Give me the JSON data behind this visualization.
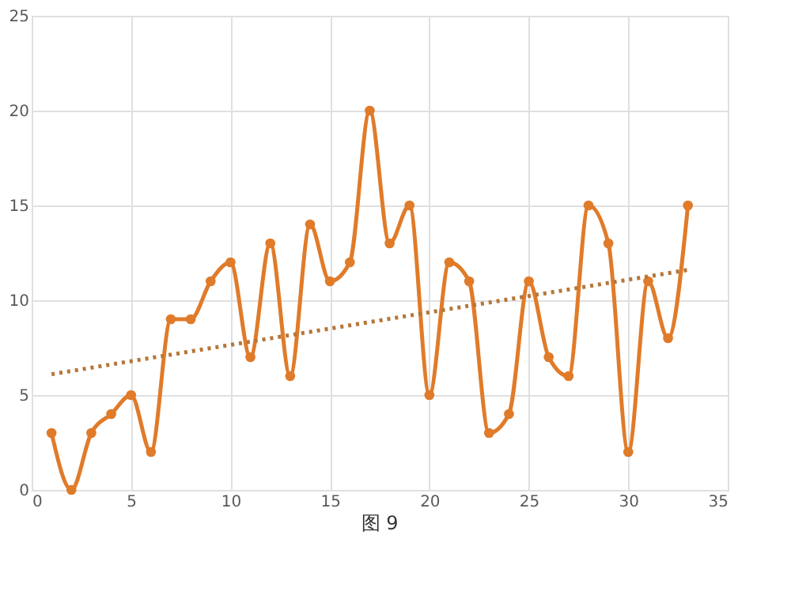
{
  "chart_data": {
    "type": "line",
    "x": [
      1,
      2,
      3,
      4,
      5,
      6,
      7,
      8,
      9,
      10,
      11,
      12,
      13,
      14,
      15,
      16,
      17,
      18,
      19,
      20,
      21,
      22,
      23,
      24,
      25,
      26,
      27,
      28,
      29,
      30,
      31,
      32,
      33
    ],
    "series": [
      {
        "color": "#e07b2a",
        "marker": "circle",
        "line_style": "solid",
        "values": [
          3,
          0,
          3,
          4,
          5,
          2,
          9,
          9,
          11,
          12,
          7,
          13,
          6,
          14,
          11,
          12,
          20,
          13,
          15,
          5,
          12,
          11,
          3,
          4,
          11,
          7,
          6,
          15,
          13,
          2,
          11,
          8,
          15
        ]
      },
      {
        "type": "line",
        "x": [
          1,
          33
        ],
        "color": "#b5763a",
        "marker": "none",
        "line_style": "dotted",
        "values": [
          6.1,
          11.6
        ]
      }
    ],
    "xlim": [
      0,
      35
    ],
    "xticks": [
      0,
      5,
      10,
      15,
      20,
      25,
      30,
      35
    ],
    "ylim": [
      0,
      25
    ],
    "yticks": [
      0,
      5,
      10,
      15,
      20,
      25
    ],
    "grid": true,
    "annotations": [
      "图 9"
    ]
  }
}
